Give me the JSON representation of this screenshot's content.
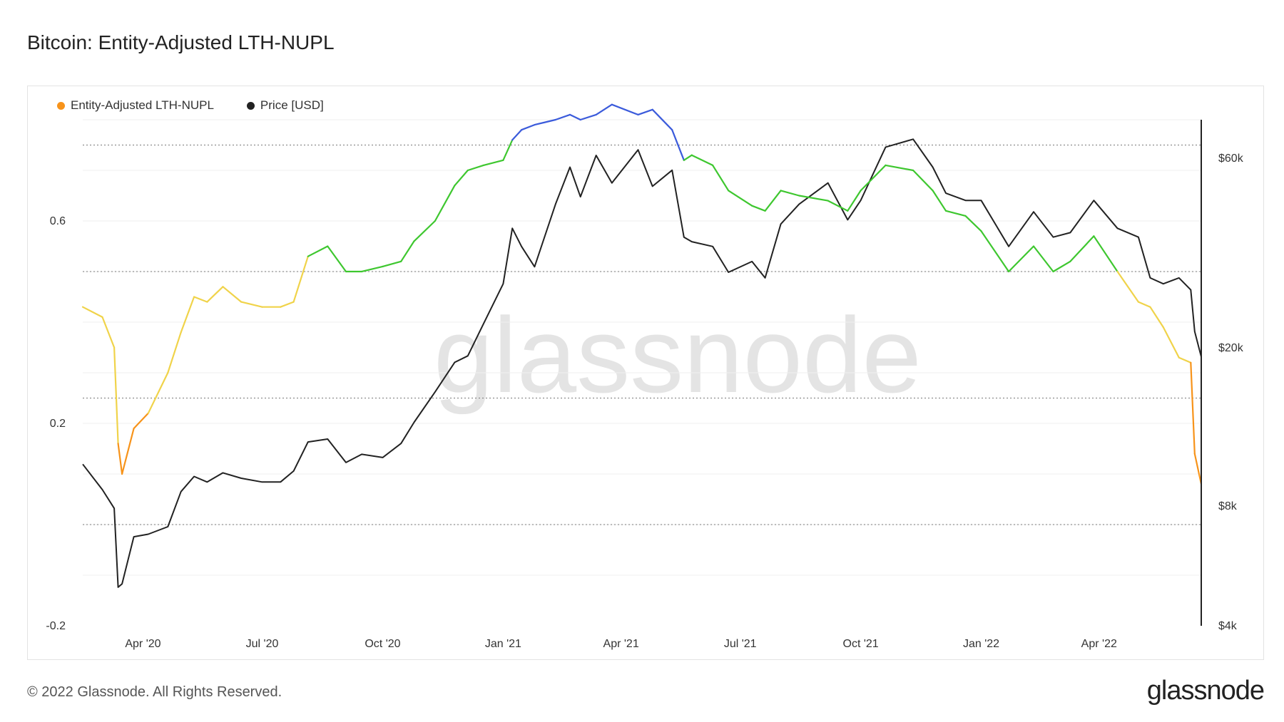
{
  "page": {
    "title": "Bitcoin: Entity-Adjusted LTH-NUPL",
    "copyright": "© 2022 Glassnode. All Rights Reserved.",
    "logo": "glassnode",
    "watermark": "glassnode"
  },
  "chart_data": {
    "type": "line",
    "title": "Bitcoin: Entity-Adjusted LTH-NUPL",
    "legend": [
      {
        "name": "Entity-Adjusted LTH-NUPL",
        "color": "#f7931a"
      },
      {
        "name": "Price [USD]",
        "color": "#222222"
      }
    ],
    "legend_position": "top-left",
    "x_ticks": [
      {
        "date": "2020-04-01",
        "label": "Apr '20"
      },
      {
        "date": "2020-07-01",
        "label": "Jul '20"
      },
      {
        "date": "2020-10-01",
        "label": "Oct '20"
      },
      {
        "date": "2021-01-01",
        "label": "Jan '21"
      },
      {
        "date": "2021-04-01",
        "label": "Apr '21"
      },
      {
        "date": "2021-07-01",
        "label": "Jul '21"
      },
      {
        "date": "2021-10-01",
        "label": "Oct '21"
      },
      {
        "date": "2022-01-01",
        "label": "Jan '22"
      },
      {
        "date": "2022-04-01",
        "label": "Apr '22"
      }
    ],
    "x_range": [
      "2020-02-15",
      "2022-06-18"
    ],
    "y_left": {
      "ticks": [
        -0.2,
        0.2,
        0.6
      ],
      "tick_labels": [
        "-0.2",
        "0.2",
        "0.6"
      ],
      "range": [
        -0.2,
        0.8
      ]
    },
    "y_right": {
      "scale": "log",
      "ticks": [
        4000,
        8000,
        20000,
        60000
      ],
      "tick_labels": [
        "$4k",
        "$8k",
        "$20k",
        "$60k"
      ],
      "range": [
        4000,
        75000
      ]
    },
    "zone_thresholds": [
      0,
      0.25,
      0.5,
      0.75
    ],
    "zone_colors": {
      "capitulation": "#e8412c",
      "hope_fear": "#f7931a",
      "optimism_anxiety": "#f0d34a",
      "belief_denial": "#3ec72f",
      "euphoria_greed": "#3b5bdb"
    },
    "series": [
      {
        "name": "Entity-Adjusted LTH-NUPL",
        "axis": "left",
        "x": [
          "2020-02-15",
          "2020-03-01",
          "2020-03-10",
          "2020-03-13",
          "2020-03-16",
          "2020-03-25",
          "2020-04-05",
          "2020-04-20",
          "2020-04-30",
          "2020-05-10",
          "2020-05-20",
          "2020-06-01",
          "2020-06-15",
          "2020-07-01",
          "2020-07-15",
          "2020-07-25",
          "2020-08-05",
          "2020-08-20",
          "2020-09-03",
          "2020-09-15",
          "2020-10-01",
          "2020-10-15",
          "2020-10-25",
          "2020-11-10",
          "2020-11-25",
          "2020-12-05",
          "2020-12-17",
          "2021-01-01",
          "2021-01-08",
          "2021-01-15",
          "2021-01-25",
          "2021-02-10",
          "2021-02-21",
          "2021-03-01",
          "2021-03-13",
          "2021-03-25",
          "2021-04-14",
          "2021-04-25",
          "2021-05-10",
          "2021-05-19",
          "2021-05-25",
          "2021-06-10",
          "2021-06-22",
          "2021-07-10",
          "2021-07-20",
          "2021-08-01",
          "2021-08-15",
          "2021-09-06",
          "2021-09-21",
          "2021-10-01",
          "2021-10-20",
          "2021-11-10",
          "2021-11-25",
          "2021-12-05",
          "2021-12-20",
          "2022-01-01",
          "2022-01-22",
          "2022-02-10",
          "2022-02-25",
          "2022-03-10",
          "2022-03-28",
          "2022-04-15",
          "2022-05-01",
          "2022-05-10",
          "2022-05-20",
          "2022-06-01",
          "2022-06-10",
          "2022-06-13",
          "2022-06-18"
        ],
        "values": [
          0.43,
          0.41,
          0.35,
          0.16,
          0.1,
          0.19,
          0.22,
          0.3,
          0.38,
          0.45,
          0.44,
          0.47,
          0.44,
          0.43,
          0.43,
          0.44,
          0.53,
          0.55,
          0.5,
          0.5,
          0.51,
          0.52,
          0.56,
          0.6,
          0.67,
          0.7,
          0.71,
          0.72,
          0.76,
          0.78,
          0.79,
          0.8,
          0.81,
          0.8,
          0.81,
          0.83,
          0.81,
          0.82,
          0.78,
          0.72,
          0.73,
          0.71,
          0.66,
          0.63,
          0.62,
          0.66,
          0.65,
          0.64,
          0.62,
          0.66,
          0.71,
          0.7,
          0.66,
          0.62,
          0.61,
          0.58,
          0.5,
          0.55,
          0.5,
          0.52,
          0.57,
          0.5,
          0.44,
          0.43,
          0.39,
          0.33,
          0.32,
          0.14,
          0.08
        ]
      },
      {
        "name": "Price [USD]",
        "axis": "right",
        "x": [
          "2020-02-15",
          "2020-03-01",
          "2020-03-10",
          "2020-03-13",
          "2020-03-16",
          "2020-03-25",
          "2020-04-05",
          "2020-04-20",
          "2020-04-30",
          "2020-05-10",
          "2020-05-20",
          "2020-06-01",
          "2020-06-15",
          "2020-07-01",
          "2020-07-15",
          "2020-07-25",
          "2020-08-05",
          "2020-08-20",
          "2020-09-03",
          "2020-09-15",
          "2020-10-01",
          "2020-10-15",
          "2020-10-25",
          "2020-11-10",
          "2020-11-25",
          "2020-12-05",
          "2020-12-17",
          "2021-01-01",
          "2021-01-08",
          "2021-01-15",
          "2021-01-25",
          "2021-02-10",
          "2021-02-21",
          "2021-03-01",
          "2021-03-13",
          "2021-03-25",
          "2021-04-14",
          "2021-04-25",
          "2021-05-10",
          "2021-05-19",
          "2021-05-25",
          "2021-06-10",
          "2021-06-22",
          "2021-07-10",
          "2021-07-20",
          "2021-08-01",
          "2021-08-15",
          "2021-09-06",
          "2021-09-21",
          "2021-10-01",
          "2021-10-20",
          "2021-11-10",
          "2021-11-25",
          "2021-12-05",
          "2021-12-20",
          "2022-01-01",
          "2022-01-22",
          "2022-02-10",
          "2022-02-25",
          "2022-03-10",
          "2022-03-28",
          "2022-04-15",
          "2022-05-01",
          "2022-05-10",
          "2022-05-20",
          "2022-06-01",
          "2022-06-10",
          "2022-06-13",
          "2022-06-18"
        ],
        "values": [
          10200,
          8800,
          7900,
          5000,
          5100,
          6700,
          6800,
          7100,
          8700,
          9500,
          9200,
          9700,
          9400,
          9200,
          9200,
          9800,
          11600,
          11800,
          10300,
          10800,
          10600,
          11500,
          13000,
          15500,
          18400,
          19100,
          23000,
          29000,
          40000,
          36000,
          32000,
          46000,
          57000,
          48000,
          61000,
          52000,
          63000,
          51000,
          56000,
          38000,
          37000,
          36000,
          31000,
          33000,
          30000,
          41000,
          46000,
          52000,
          42000,
          47000,
          64000,
          67000,
          57000,
          49000,
          47000,
          47000,
          36000,
          44000,
          38000,
          39000,
          47000,
          40000,
          38000,
          30000,
          29000,
          30000,
          28000,
          22000,
          19000
        ]
      }
    ]
  }
}
